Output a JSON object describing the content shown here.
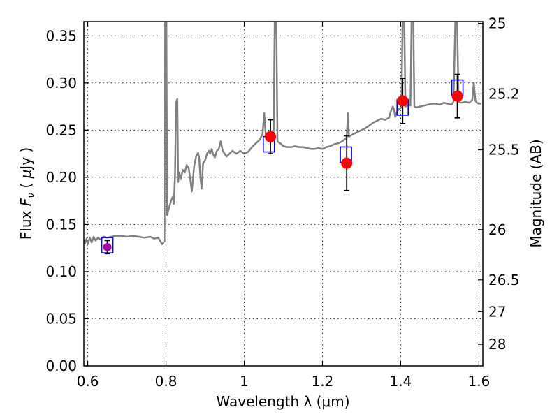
{
  "chart_data": {
    "type": "line",
    "title": "",
    "xlabel": "Wavelength  λ (μm)",
    "ylabel": "Flux  F_ν  ( μJy )",
    "ylabel_parts": {
      "pre": "Flux  ",
      "symbol": "F",
      "sub": "ν",
      "mid": "  (  ",
      "mu": "μ",
      "post": "Jy  )"
    },
    "ylabel_right": "Magnitude (AB)",
    "xlim": [
      0.59,
      1.61
    ],
    "ylim": [
      0.0,
      0.365
    ],
    "grid": true,
    "xticks": [
      {
        "value": 0.6,
        "label": "0.6"
      },
      {
        "value": 0.8,
        "label": "0.8"
      },
      {
        "value": 1.0,
        "label": "1"
      },
      {
        "value": 1.2,
        "label": "1.2"
      },
      {
        "value": 1.4,
        "label": "1.4"
      },
      {
        "value": 1.6,
        "label": "1.6"
      }
    ],
    "yticks": [
      {
        "value": 0.0,
        "label": "0.00"
      },
      {
        "value": 0.05,
        "label": "0.05"
      },
      {
        "value": 0.1,
        "label": "0.10"
      },
      {
        "value": 0.15,
        "label": "0.15"
      },
      {
        "value": 0.2,
        "label": "0.20"
      },
      {
        "value": 0.25,
        "label": "0.25"
      },
      {
        "value": 0.3,
        "label": "0.30"
      },
      {
        "value": 0.35,
        "label": "0.35"
      }
    ],
    "right_ticks": [
      {
        "flux": 0.3631,
        "label": "25"
      },
      {
        "flux": 0.2884,
        "label": "25.2"
      },
      {
        "flux": 0.2291,
        "label": "25.5"
      },
      {
        "flux": 0.1445,
        "label": "26"
      },
      {
        "flux": 0.0912,
        "label": "26.5"
      },
      {
        "flux": 0.0575,
        "label": "27"
      },
      {
        "flux": 0.0229,
        "label": "28"
      }
    ],
    "colors": {
      "model": "#808080",
      "observed": "#ff0000",
      "model_band": "#0000ff",
      "errorbar": "#000000",
      "single_point": "#aa00aa"
    },
    "model_spectrum": [
      [
        0.59,
        0.134
      ],
      [
        0.593,
        0.13
      ],
      [
        0.597,
        0.135
      ],
      [
        0.6,
        0.129
      ],
      [
        0.605,
        0.136
      ],
      [
        0.61,
        0.131
      ],
      [
        0.615,
        0.137
      ],
      [
        0.62,
        0.133
      ],
      [
        0.626,
        0.136
      ],
      [
        0.632,
        0.134
      ],
      [
        0.64,
        0.137
      ],
      [
        0.65,
        0.136
      ],
      [
        0.66,
        0.137
      ],
      [
        0.672,
        0.138
      ],
      [
        0.685,
        0.138
      ],
      [
        0.7,
        0.137
      ],
      [
        0.715,
        0.138
      ],
      [
        0.73,
        0.137
      ],
      [
        0.745,
        0.136
      ],
      [
        0.76,
        0.137
      ],
      [
        0.77,
        0.135
      ],
      [
        0.78,
        0.136
      ],
      [
        0.79,
        0.129
      ],
      [
        0.796,
        0.132
      ],
      [
        0.798,
        0.37
      ],
      [
        0.801,
        0.37
      ],
      [
        0.803,
        0.16
      ],
      [
        0.808,
        0.168
      ],
      [
        0.813,
        0.175
      ],
      [
        0.818,
        0.18
      ],
      [
        0.82,
        0.172
      ],
      [
        0.823,
        0.2
      ],
      [
        0.826,
        0.28
      ],
      [
        0.829,
        0.283
      ],
      [
        0.831,
        0.195
      ],
      [
        0.834,
        0.205
      ],
      [
        0.838,
        0.198
      ],
      [
        0.843,
        0.208
      ],
      [
        0.848,
        0.205
      ],
      [
        0.853,
        0.213
      ],
      [
        0.858,
        0.21
      ],
      [
        0.862,
        0.198
      ],
      [
        0.866,
        0.185
      ],
      [
        0.872,
        0.212
      ],
      [
        0.877,
        0.222
      ],
      [
        0.882,
        0.226
      ],
      [
        0.885,
        0.22
      ],
      [
        0.888,
        0.2
      ],
      [
        0.891,
        0.188
      ],
      [
        0.895,
        0.215
      ],
      [
        0.9,
        0.218
      ],
      [
        0.905,
        0.225
      ],
      [
        0.91,
        0.228
      ],
      [
        0.913,
        0.225
      ],
      [
        0.917,
        0.23
      ],
      [
        0.92,
        0.225
      ],
      [
        0.925,
        0.221
      ],
      [
        0.93,
        0.228
      ],
      [
        0.935,
        0.23
      ],
      [
        0.94,
        0.238
      ],
      [
        0.945,
        0.228
      ],
      [
        0.95,
        0.225
      ],
      [
        0.955,
        0.222
      ],
      [
        0.96,
        0.224
      ],
      [
        0.97,
        0.228
      ],
      [
        0.98,
        0.225
      ],
      [
        0.99,
        0.228
      ],
      [
        1.0,
        0.225
      ],
      [
        1.01,
        0.227
      ],
      [
        1.02,
        0.232
      ],
      [
        1.03,
        0.236
      ],
      [
        1.04,
        0.24
      ],
      [
        1.047,
        0.246
      ],
      [
        1.051,
        0.268
      ],
      [
        1.055,
        0.245
      ],
      [
        1.062,
        0.24
      ],
      [
        1.068,
        0.241
      ],
      [
        1.075,
        0.243
      ],
      [
        1.078,
        0.37
      ],
      [
        1.082,
        0.37
      ],
      [
        1.085,
        0.238
      ],
      [
        1.092,
        0.236
      ],
      [
        1.1,
        0.233
      ],
      [
        1.11,
        0.232
      ],
      [
        1.12,
        0.232
      ],
      [
        1.13,
        0.233
      ],
      [
        1.14,
        0.232
      ],
      [
        1.15,
        0.232
      ],
      [
        1.16,
        0.231
      ],
      [
        1.17,
        0.23
      ],
      [
        1.18,
        0.23
      ],
      [
        1.19,
        0.231
      ],
      [
        1.2,
        0.23
      ],
      [
        1.21,
        0.232
      ],
      [
        1.22,
        0.233
      ],
      [
        1.23,
        0.235
      ],
      [
        1.24,
        0.236
      ],
      [
        1.25,
        0.238
      ],
      [
        1.262,
        0.242
      ],
      [
        1.265,
        0.268
      ],
      [
        1.268,
        0.243
      ],
      [
        1.275,
        0.245
      ],
      [
        1.29,
        0.248
      ],
      [
        1.3,
        0.25
      ],
      [
        1.31,
        0.252
      ],
      [
        1.32,
        0.255
      ],
      [
        1.33,
        0.258
      ],
      [
        1.34,
        0.26
      ],
      [
        1.35,
        0.262
      ],
      [
        1.36,
        0.261
      ],
      [
        1.37,
        0.263
      ],
      [
        1.375,
        0.27
      ],
      [
        1.38,
        0.275
      ],
      [
        1.383,
        0.272
      ],
      [
        1.386,
        0.264
      ],
      [
        1.39,
        0.269
      ],
      [
        1.395,
        0.272
      ],
      [
        1.402,
        0.274
      ],
      [
        1.405,
        0.37
      ],
      [
        1.409,
        0.37
      ],
      [
        1.412,
        0.275
      ],
      [
        1.42,
        0.277
      ],
      [
        1.425,
        0.276
      ],
      [
        1.428,
        0.37
      ],
      [
        1.432,
        0.37
      ],
      [
        1.435,
        0.275
      ],
      [
        1.44,
        0.274
      ],
      [
        1.45,
        0.275
      ],
      [
        1.46,
        0.276
      ],
      [
        1.47,
        0.277
      ],
      [
        1.48,
        0.278
      ],
      [
        1.49,
        0.278
      ],
      [
        1.5,
        0.277
      ],
      [
        1.51,
        0.279
      ],
      [
        1.52,
        0.278
      ],
      [
        1.53,
        0.277
      ],
      [
        1.535,
        0.28
      ],
      [
        1.54,
        0.37
      ],
      [
        1.544,
        0.37
      ],
      [
        1.548,
        0.28
      ],
      [
        1.555,
        0.279
      ],
      [
        1.565,
        0.28
      ],
      [
        1.575,
        0.279
      ],
      [
        1.583,
        0.282
      ],
      [
        1.587,
        0.3
      ],
      [
        1.591,
        0.281
      ],
      [
        1.595,
        0.279
      ],
      [
        1.6,
        0.278
      ],
      [
        1.605,
        0.278
      ]
    ],
    "model_band_fluxes": [
      {
        "x": 0.65,
        "y": 0.128
      },
      {
        "x": 1.063,
        "y": 0.235
      },
      {
        "x": 1.26,
        "y": 0.224
      },
      {
        "x": 1.405,
        "y": 0.274
      },
      {
        "x": 1.545,
        "y": 0.295
      }
    ],
    "observed_photometry": [
      {
        "x": 0.65,
        "y": 0.126,
        "err": 0.007
      },
      {
        "x": 1.067,
        "y": 0.243,
        "err": 0.018
      },
      {
        "x": 1.262,
        "y": 0.215,
        "err": 0.029
      },
      {
        "x": 1.405,
        "y": 0.281,
        "err": 0.024
      },
      {
        "x": 1.545,
        "y": 0.286,
        "err": 0.023
      }
    ]
  }
}
